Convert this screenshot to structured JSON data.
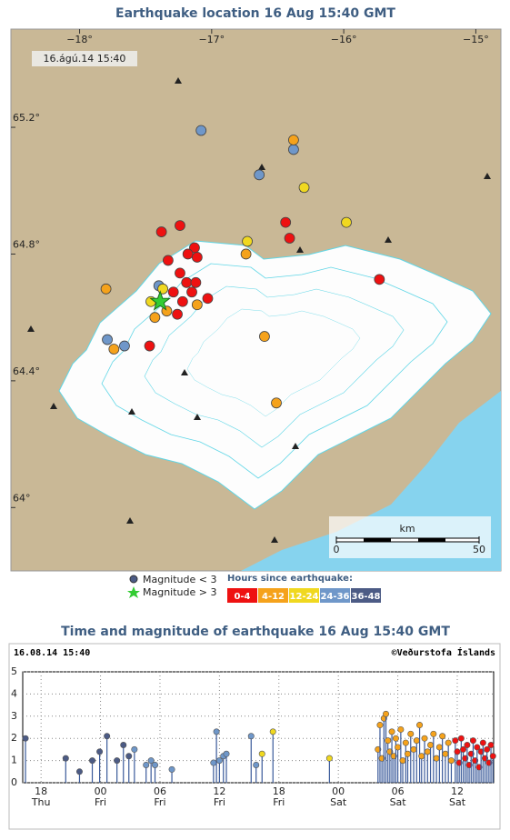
{
  "map": {
    "type": "scatter",
    "title": "Earthquake location   16 Aug 15:40 GMT",
    "timestamp": "16.ágú.14 15:40",
    "xlim": [
      -18.52,
      -14.81
    ],
    "ylim": [
      63.8,
      65.51
    ],
    "xticks": [
      {
        "value": -18,
        "label": "−18°"
      },
      {
        "value": -17,
        "label": "−17°"
      },
      {
        "value": -16,
        "label": "−16°"
      },
      {
        "value": -15,
        "label": "−15°"
      }
    ],
    "yticks": [
      {
        "value": 65.2,
        "label": "65.2°"
      },
      {
        "value": 64.8,
        "label": "64.8°"
      },
      {
        "value": 64.4,
        "label": "64.4°"
      },
      {
        "value": 64,
        "label": "64°"
      }
    ],
    "series": [
      {
        "name": "0-4",
        "color": "#ee1111",
        "x": [
          -17.38,
          -17.24,
          -17.33,
          -17.13,
          -17.18,
          -17.11,
          -17.24,
          -17.19,
          -17.29,
          -17.22,
          -17.15,
          -17.26,
          -17.03,
          -17.47,
          -16.44,
          -16.41,
          -15.73,
          -17.12
        ],
        "y": [
          64.87,
          64.89,
          64.78,
          64.82,
          64.8,
          64.79,
          64.74,
          64.71,
          64.68,
          64.65,
          64.68,
          64.61,
          64.66,
          64.51,
          64.9,
          64.85,
          64.72,
          64.71
        ]
      },
      {
        "name": "4-12",
        "color": "#f5a21b",
        "x": [
          -16.38,
          -16.74,
          -16.6,
          -16.51,
          -17.74,
          -17.8,
          -17.11,
          -17.43,
          -17.34
        ],
        "y": [
          65.16,
          64.8,
          64.54,
          64.33,
          64.5,
          64.69,
          64.64,
          64.6,
          64.62
        ]
      },
      {
        "name": "12-24",
        "color": "#f0d820",
        "x": [
          -15.98,
          -16.3,
          -16.73,
          -17.37,
          -17.46
        ],
        "y": [
          64.9,
          65.01,
          64.84,
          64.69,
          64.65
        ]
      },
      {
        "name": "24-36",
        "color": "#6f97c9",
        "x": [
          -17.08,
          -16.38,
          -16.64,
          -17.79,
          -17.66,
          -17.4
        ],
        "y": [
          65.19,
          65.13,
          65.05,
          64.53,
          64.51,
          64.7
        ]
      },
      {
        "name": "36-48",
        "color": "#4c5b85",
        "x": [],
        "y": []
      }
    ],
    "star": {
      "x": -17.39,
      "y": 64.65,
      "color": "#33cc33"
    },
    "scale": {
      "label": "km",
      "ticks": [
        0,
        50
      ]
    },
    "legend": {
      "small": "Magnitude < 3",
      "large": "Magnitude > 3",
      "hours_title": "Hours since earthquake:"
    }
  },
  "chart_data": {
    "type": "stem",
    "title": "Time and magnitude of earthquake   16 Aug 15:40 GMT",
    "date_label": "16.08.14 15:40",
    "credit": "©Veðurstofa Íslands",
    "xlim": [
      16.15,
      63.67
    ],
    "ylim": [
      0,
      5
    ],
    "xticks": [
      18,
      {
        "value": 24,
        "label": "00"
      },
      {
        "value": 30,
        "label": "06"
      },
      {
        "value": 36,
        "label": "12"
      },
      {
        "value": 42,
        "label": "18"
      },
      {
        "value": 48,
        "label": "00"
      },
      {
        "value": 54,
        "label": "06"
      },
      {
        "value": 60,
        "label": "12"
      }
    ],
    "xtick_days": [
      "Thu",
      "Fri",
      "Fri",
      "Fri",
      "Fri",
      "Sat",
      "Sat",
      "Sat"
    ],
    "yticks": [
      0,
      1,
      2,
      3,
      4,
      5
    ],
    "grid": true,
    "series": [
      {
        "color": "#4c5b85",
        "x": [
          16.43,
          20.49,
          21.88,
          23.17,
          23.91,
          24.65,
          25.66,
          26.31,
          26.86
        ],
        "values": [
          2.0,
          1.1,
          0.5,
          1.0,
          1.4,
          2.1,
          1.0,
          1.7,
          1.2
        ]
      },
      {
        "color": "#6f97c9",
        "x": [
          27.42,
          28.6,
          29.1,
          29.5,
          31.2,
          35.4,
          35.7,
          36.0,
          36.4,
          36.7,
          39.2,
          39.7
        ],
        "values": [
          1.5,
          0.8,
          1.0,
          0.8,
          0.6,
          0.9,
          2.3,
          1.0,
          1.2,
          1.3,
          2.1,
          0.8
        ]
      },
      {
        "color": "#f0d820",
        "x": [
          40.3,
          41.4,
          47.1
        ],
        "values": [
          1.3,
          2.3,
          1.1
        ]
      },
      {
        "color": "#f5a21b",
        "x": [
          52.0,
          52.2,
          52.4,
          52.6,
          52.8,
          53.0,
          53.2,
          53.4,
          53.6,
          53.8,
          54.0,
          54.3,
          54.5,
          54.8,
          55.0,
          55.3,
          55.6,
          55.9,
          56.2,
          56.4,
          56.7,
          57.0,
          57.3,
          57.6,
          57.9,
          58.2,
          58.5,
          58.8,
          59.1,
          59.4
        ],
        "values": [
          1.5,
          2.6,
          1.1,
          2.9,
          3.1,
          1.9,
          1.4,
          2.3,
          1.2,
          2.0,
          1.6,
          2.4,
          1.0,
          1.8,
          1.3,
          2.2,
          1.5,
          1.9,
          2.6,
          1.2,
          2.0,
          1.4,
          1.7,
          2.2,
          1.1,
          1.6,
          2.1,
          1.3,
          1.8,
          1.0
        ]
      },
      {
        "color": "#ee1111",
        "x": [
          59.8,
          60.0,
          60.2,
          60.4,
          60.6,
          60.8,
          61.0,
          61.2,
          61.4,
          61.6,
          61.8,
          62.0,
          62.2,
          62.4,
          62.6,
          62.8,
          63.0,
          63.2,
          63.4,
          63.6
        ],
        "values": [
          1.9,
          1.4,
          0.9,
          2.0,
          1.5,
          1.1,
          1.7,
          0.8,
          1.3,
          1.9,
          1.0,
          1.6,
          0.7,
          1.4,
          1.8,
          1.1,
          1.5,
          0.9,
          1.7,
          1.2
        ]
      }
    ]
  }
}
